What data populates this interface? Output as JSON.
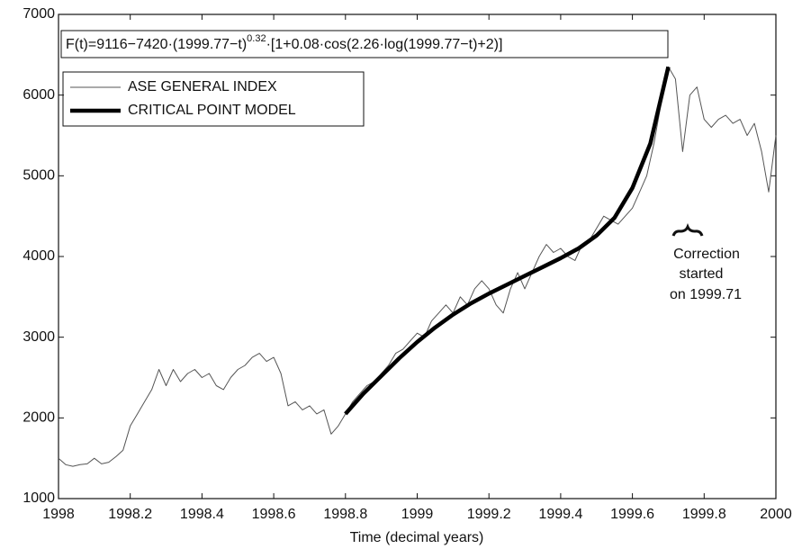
{
  "chart_data": {
    "type": "line",
    "xlabel": "Time (decimal years)",
    "xlim": [
      1998,
      2000
    ],
    "xticks": [
      1998,
      1998.2,
      1998.4,
      1998.6,
      1998.8,
      1999,
      1999.2,
      1999.4,
      1999.6,
      1999.8,
      2000
    ],
    "ylim": [
      1000,
      7000
    ],
    "yticks": [
      1000,
      2000,
      3000,
      4000,
      5000,
      6000,
      7000
    ],
    "legend": "upper left",
    "formula": [
      "F(t)=9116−7420·(1999.77−t)",
      "0.32",
      "·[1+0.08·cos(2.26·log(1999.77−t)+2)]"
    ],
    "annotation": [
      "Correction",
      "started",
      "on 1999.71"
    ],
    "series": [
      {
        "name": "ASE GENERAL INDEX",
        "color": "#555555",
        "x": [
          1998,
          1998.02,
          1998.04,
          1998.06,
          1998.08,
          1998.1,
          1998.12,
          1998.14,
          1998.16,
          1998.18,
          1998.2,
          1998.22,
          1998.24,
          1998.26,
          1998.28,
          1998.3,
          1998.32,
          1998.34,
          1998.36,
          1998.38,
          1998.4,
          1998.42,
          1998.44,
          1998.46,
          1998.48,
          1998.5,
          1998.52,
          1998.54,
          1998.56,
          1998.58,
          1998.6,
          1998.62,
          1998.64,
          1998.66,
          1998.68,
          1998.7,
          1998.72,
          1998.74,
          1998.76,
          1998.78,
          1998.8,
          1998.82,
          1998.84,
          1998.86,
          1998.88,
          1998.9,
          1998.92,
          1998.94,
          1998.96,
          1998.98,
          1999,
          1999.02,
          1999.04,
          1999.06,
          1999.08,
          1999.1,
          1999.12,
          1999.14,
          1999.16,
          1999.18,
          1999.2,
          1999.22,
          1999.24,
          1999.26,
          1999.28,
          1999.3,
          1999.32,
          1999.34,
          1999.36,
          1999.38,
          1999.4,
          1999.42,
          1999.44,
          1999.46,
          1999.48,
          1999.5,
          1999.52,
          1999.54,
          1999.56,
          1999.58,
          1999.6,
          1999.62,
          1999.64,
          1999.66,
          1999.68,
          1999.7,
          1999.72,
          1999.74,
          1999.76,
          1999.78,
          1999.8,
          1999.82,
          1999.84,
          1999.86,
          1999.88,
          1999.9,
          1999.92,
          1999.94,
          1999.96,
          1999.98,
          2000
        ],
        "values": [
          1500,
          1420,
          1400,
          1420,
          1430,
          1500,
          1430,
          1450,
          1520,
          1600,
          1900,
          2050,
          2200,
          2350,
          2600,
          2400,
          2600,
          2450,
          2550,
          2600,
          2500,
          2550,
          2400,
          2350,
          2500,
          2600,
          2650,
          2750,
          2800,
          2700,
          2750,
          2550,
          2150,
          2200,
          2100,
          2150,
          2050,
          2100,
          1800,
          1900,
          2050,
          2200,
          2300,
          2400,
          2450,
          2550,
          2650,
          2800,
          2850,
          2950,
          3050,
          3000,
          3200,
          3300,
          3400,
          3300,
          3500,
          3400,
          3600,
          3700,
          3600,
          3400,
          3300,
          3600,
          3800,
          3600,
          3800,
          4000,
          4150,
          4050,
          4100,
          4000,
          3950,
          4150,
          4200,
          4350,
          4500,
          4450,
          4400,
          4500,
          4600,
          4800,
          5000,
          5400,
          5900,
          6350,
          6200,
          5300,
          6000,
          6100,
          5700,
          5600,
          5700,
          5750,
          5650,
          5700,
          5500,
          5650,
          5300,
          4800,
          5500
        ]
      },
      {
        "name": "CRITICAL POINT MODEL",
        "color": "#000000",
        "x": [
          1998.8,
          1998.85,
          1998.9,
          1998.95,
          1999,
          1999.05,
          1999.1,
          1999.15,
          1999.2,
          1999.25,
          1999.3,
          1999.35,
          1999.4,
          1999.45,
          1999.5,
          1999.55,
          1999.6,
          1999.65,
          1999.7
        ],
        "values": [
          2050,
          2300,
          2520,
          2740,
          2940,
          3120,
          3280,
          3420,
          3540,
          3650,
          3760,
          3870,
          3980,
          4100,
          4260,
          4480,
          4850,
          5400,
          6350
        ]
      }
    ]
  }
}
